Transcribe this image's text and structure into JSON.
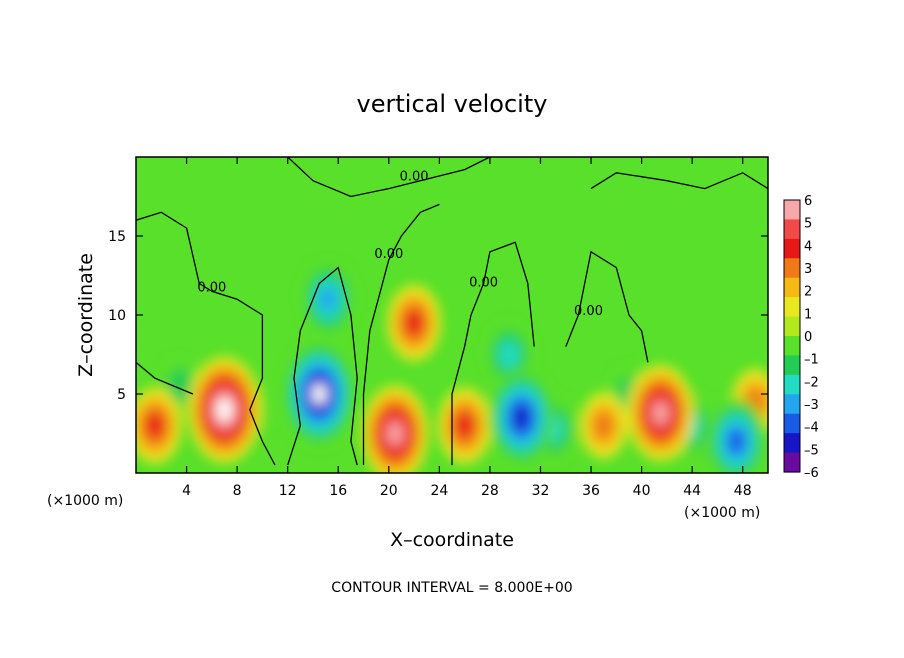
{
  "chart_data": {
    "type": "heatmap",
    "title": "vertical velocity",
    "xlabel": "X–coordinate",
    "ylabel": "Z–coordinate",
    "x_unit_left": "(×1000 m)",
    "x_unit_right": "(×1000 m)",
    "footer": "CONTOUR INTERVAL = 8.000E+00",
    "xlim": [
      0,
      50
    ],
    "ylim": [
      0,
      20
    ],
    "x_ticks": [
      4,
      8,
      12,
      16,
      20,
      24,
      28,
      32,
      36,
      40,
      44,
      48
    ],
    "y_ticks": [
      5,
      10,
      15
    ],
    "colorbar": {
      "min": -6,
      "max": 6,
      "tick_values": [
        6,
        5,
        4,
        3,
        2,
        1,
        0,
        -1,
        -2,
        -3,
        -4,
        -5,
        -6
      ],
      "tick_labels": [
        "6",
        "5",
        "4",
        "3",
        "2",
        "1",
        "0",
        "–1",
        "–2",
        "–3",
        "–4",
        "–5",
        "–6"
      ],
      "colors": [
        "#f7a7a7",
        "#f24a4a",
        "#e81818",
        "#f07a18",
        "#f5b915",
        "#e8e820",
        "#b4e81e",
        "#58e02a",
        "#22cc55",
        "#22dcc4",
        "#22a7ee",
        "#1a5be6",
        "#1616c6",
        "#6a0aa0"
      ]
    },
    "contour_labels": [
      {
        "text": "0.00",
        "x": 6,
        "z": 11.5
      },
      {
        "text": "0.00",
        "x": 22,
        "z": 18.5
      },
      {
        "text": "0.00",
        "x": 20,
        "z": 13.6
      },
      {
        "text": "0.00",
        "x": 27.5,
        "z": 11.8
      },
      {
        "text": "0.00",
        "x": 35.8,
        "z": 10.0
      }
    ],
    "features": [
      {
        "x": 14.5,
        "z": 5,
        "w": -7
      },
      {
        "x": 15.2,
        "z": 11,
        "w": -4
      },
      {
        "x": 7,
        "z": 4,
        "w": 7
      },
      {
        "x": 20.5,
        "z": 2.5,
        "w": 6
      },
      {
        "x": 22,
        "z": 9.5,
        "w": 4
      },
      {
        "x": 30.5,
        "z": 3.5,
        "w": -6
      },
      {
        "x": 29.5,
        "z": 7.5,
        "w": -3
      },
      {
        "x": 33,
        "z": 2.8,
        "w": -3
      },
      {
        "x": 41.5,
        "z": 3.8,
        "w": 6
      },
      {
        "x": 45.5,
        "z": 2.5,
        "w": -3
      },
      {
        "x": 47.5,
        "z": 2,
        "w": -5
      },
      {
        "x": 1.5,
        "z": 3,
        "w": 4
      },
      {
        "x": 3.5,
        "z": 5.5,
        "w": -2
      },
      {
        "x": 26,
        "z": 3,
        "w": 4
      },
      {
        "x": 37,
        "z": 3,
        "w": 3
      },
      {
        "x": 39,
        "z": 5,
        "w": -2
      },
      {
        "x": 9.5,
        "z": 4,
        "w": -1
      },
      {
        "x": 43.8,
        "z": 3,
        "w": -3
      },
      {
        "x": 49,
        "z": 4.5,
        "w": 3
      }
    ]
  }
}
